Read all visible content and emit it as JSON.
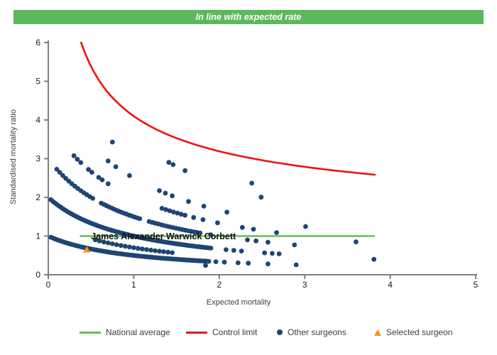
{
  "header": {
    "status_banner": "In line with expected rate",
    "banner_color": "#5cb85c",
    "banner_text_color": "#ffffff"
  },
  "chart_data": {
    "type": "scatter",
    "title": "",
    "xlabel": "Expected mortality",
    "ylabel": "Standardised mortality ratio",
    "xlim": [
      0,
      5
    ],
    "ylim": [
      0,
      6
    ],
    "x_ticks": [
      "0",
      "1",
      "2",
      "3",
      "4",
      "5"
    ],
    "y_ticks": [
      "0",
      "1",
      "2",
      "3",
      "4",
      "5",
      "6"
    ],
    "grid": false,
    "legend_position": "bottom",
    "colors": {
      "other_surgeons": "#1e4573",
      "selected_surgeon": "#f0922b",
      "national_average": "#62c152",
      "control_limit": "#ee1111",
      "axis": "#7f7f7f",
      "tick_text": "#1a1a1a"
    },
    "national_average": {
      "y": 1,
      "x_start": 0.37,
      "x_end": 3.82
    },
    "control_limit": {
      "formula": "smr = 1 + k/sqrt(expected)",
      "k": 3.1,
      "x_start": 0.3844,
      "x_end": 3.82,
      "y_end": 2.59
    },
    "selected_surgeon": {
      "name": "James Alexander Warwick Corbett",
      "x": 0.45,
      "y": 0.65,
      "label_x": 0.5,
      "label_y": 1.0
    },
    "surgeon_bands_note": "dense bands of other surgeons follow smr = n/(1+expected) for n observed deaths; segments are [x_start,x_end,x_step]",
    "surgeon_bands": [
      {
        "n": 1,
        "segments": [
          [
            0.03,
            1.88,
            0.022
          ]
        ],
        "extra_x": [
          1.96,
          2.06,
          2.22,
          2.34,
          2.57,
          2.9
        ]
      },
      {
        "n": 1.4,
        "segments": [
          [
            0.55,
            1.48,
            0.05
          ]
        ],
        "extra_x": []
      },
      {
        "n": 2,
        "segments": [
          [
            0.03,
            1.92,
            0.024
          ]
        ],
        "extra_x": [
          2.08,
          2.17,
          2.26,
          2.53,
          2.62,
          2.7
        ]
      },
      {
        "n": 3,
        "segments": [
          [
            0.1,
            0.52,
            0.035
          ],
          [
            0.62,
            1.08,
            0.03
          ],
          [
            1.18,
            1.8,
            0.035
          ]
        ],
        "extra_x": [
          1.9,
          2.33,
          2.43,
          2.57,
          2.88
        ]
      },
      {
        "n": 4,
        "segments": [
          [
            1.33,
            1.6,
            0.045
          ]
        ],
        "extra_x": [
          0.3,
          0.34,
          0.38,
          0.47,
          0.51,
          0.59,
          0.63,
          0.7,
          1.7,
          1.81,
          1.98,
          2.27,
          2.4,
          2.67
        ]
      },
      {
        "n": 5,
        "segments": [],
        "extra_x": [
          0.7,
          0.79,
          0.95,
          1.3,
          1.37,
          1.45,
          1.64,
          1.82,
          2.09,
          3.01
        ]
      },
      {
        "n": 6,
        "segments": [],
        "extra_x": [
          0.75
        ]
      },
      {
        "n": 7,
        "segments": [],
        "extra_x": [
          1.41,
          1.46,
          1.6,
          2.49
        ]
      },
      {
        "n": 8,
        "segments": [],
        "extra_x": [
          2.38
        ]
      }
    ],
    "outlier_points": [
      [
        3.6,
        0.85
      ],
      [
        3.81,
        0.4
      ],
      [
        1.84,
        0.24
      ]
    ]
  },
  "legend": {
    "items": [
      {
        "label": "National average",
        "type": "line",
        "color": "#62c152"
      },
      {
        "label": "Control limit",
        "type": "line",
        "color": "#ee1111"
      },
      {
        "label": "Other surgeons",
        "type": "dot",
        "color": "#1e4573"
      },
      {
        "label": "Selected surgeon",
        "type": "triangle",
        "color": "#f0922b"
      }
    ]
  }
}
